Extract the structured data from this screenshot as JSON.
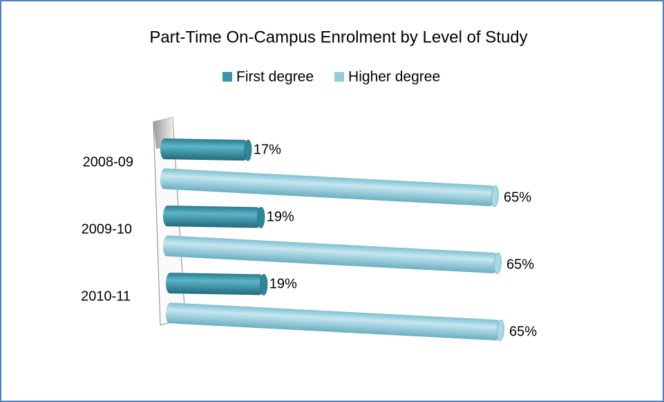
{
  "chart_data": {
    "type": "bar3d_horizontal",
    "title": "Part-Time On-Campus Enrolment by Level of Study",
    "categories": [
      "2008-09",
      "2009-10",
      "2010-11"
    ],
    "series": [
      {
        "name": "First degree",
        "color": "#3a97ab",
        "values": [
          17,
          19,
          19
        ],
        "value_labels": [
          "17%",
          "19%",
          "19%"
        ]
      },
      {
        "name": "Higher degree",
        "color": "#93cddd",
        "values": [
          65,
          65,
          65
        ],
        "value_labels": [
          "65%",
          "65%",
          "65%"
        ]
      }
    ],
    "legend": "top"
  }
}
